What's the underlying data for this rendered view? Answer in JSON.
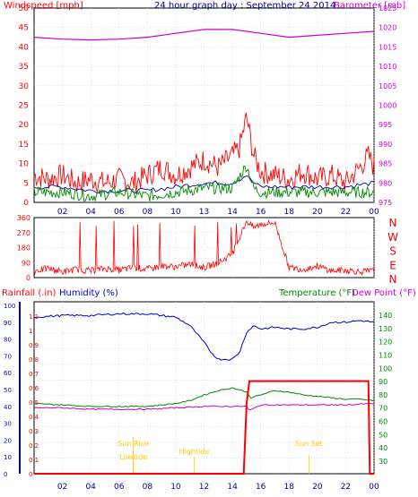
{
  "title": "24 hour graph day : September 24 2014",
  "colors": {
    "wind_avg": "#000099",
    "wind_gust": "#ff0000",
    "wind_green": "#008800",
    "barometer": "#cc00cc",
    "direction": "#ff0000",
    "rain": "#ff0000",
    "humidity": "#0000cc",
    "temperature": "#008800",
    "dewpoint": "#cc00cc",
    "sun_markers": "#ffcc00",
    "grid": "#c8c8c8"
  },
  "chart_data": [
    {
      "type": "line",
      "labels": {
        "left": "Windspeed [mph]",
        "right": "Barometer [mb]"
      },
      "x_ticks": [
        "02",
        "04",
        "06",
        "08",
        "10",
        "13",
        "14",
        "16",
        "18",
        "20",
        "22",
        "00"
      ],
      "y_left_ticks": [
        "0",
        "5",
        "10",
        "15",
        "20",
        "25",
        "30",
        "35",
        "40",
        "45",
        "50"
      ],
      "y_right_ticks": [
        "975",
        "980",
        "985",
        "990",
        "995",
        "1000",
        "1005",
        "1010",
        "1015",
        "1020",
        "1025"
      ],
      "ylim_left": [
        0,
        50
      ],
      "ylim_right": [
        975,
        1025
      ],
      "series": [
        {
          "name": "Windspeed",
          "axis": "left",
          "x": [
            0,
            1,
            2,
            3,
            4,
            5,
            6,
            7,
            8,
            9,
            10,
            11,
            12,
            13,
            14,
            14.5,
            15,
            15.5,
            16,
            17,
            18,
            19,
            20,
            21,
            22,
            23,
            23.6,
            24
          ],
          "values": [
            7,
            6,
            7,
            5,
            6,
            5,
            6,
            5,
            7,
            9,
            7,
            9,
            11,
            9,
            12,
            14,
            22,
            12,
            8,
            7,
            6,
            8,
            6,
            7,
            5,
            9,
            12,
            9
          ]
        },
        {
          "name": "Average",
          "axis": "left",
          "x": [
            0,
            2,
            4,
            6,
            8,
            10,
            12,
            14,
            15,
            15.5,
            16,
            18,
            20,
            22,
            24
          ],
          "values": [
            4,
            4,
            3,
            3,
            3,
            4,
            5,
            5,
            7,
            5,
            4,
            4,
            4,
            4,
            5
          ]
        },
        {
          "name": "Green",
          "axis": "left",
          "x": [
            0,
            2,
            4,
            6,
            8,
            10,
            12,
            14,
            15,
            15.5,
            16,
            18,
            20,
            22,
            24
          ],
          "values": [
            2,
            2,
            1,
            2,
            1,
            2,
            3,
            3,
            9,
            3,
            2,
            2,
            2,
            2,
            2
          ]
        },
        {
          "name": "Barometer",
          "axis": "right",
          "x": [
            0,
            2,
            4,
            6,
            8,
            10,
            12,
            14,
            16,
            18,
            20,
            22,
            24
          ],
          "values": [
            1017.5,
            1017,
            1016.8,
            1017,
            1017.5,
            1018.5,
            1019.5,
            1019.5,
            1018.5,
            1017.5,
            1018,
            1018.5,
            1019
          ]
        }
      ]
    },
    {
      "type": "line",
      "labels": {
        "right": [
          "N",
          "W",
          "S",
          "E",
          "N"
        ]
      },
      "y_left_ticks": [
        "0",
        "90",
        "180",
        "270",
        "360"
      ],
      "ylim_left": [
        0,
        360
      ],
      "series": [
        {
          "name": "Direction",
          "x": [
            0,
            1,
            2,
            3,
            4,
            5,
            6,
            7,
            8,
            9,
            10,
            11,
            12,
            13,
            14,
            15,
            15.5,
            16,
            17,
            18,
            19,
            20,
            21,
            22,
            23,
            24
          ],
          "values": [
            40,
            55,
            35,
            50,
            40,
            55,
            45,
            60,
            50,
            70,
            65,
            80,
            60,
            90,
            140,
            340,
            300,
            320,
            330,
            60,
            50,
            70,
            40,
            45,
            35,
            40
          ]
        }
      ]
    },
    {
      "type": "line",
      "labels": {
        "rainfall": "Rainfall (.in)",
        "humidity": "Humidity (%)",
        "temperature": "Temperature (°F)",
        "dewpoint": "Dew Point (°F)"
      },
      "x_ticks": [
        "02",
        "04",
        "06",
        "08",
        "10",
        "12",
        "14",
        "16",
        "18",
        "20",
        "22",
        "00"
      ],
      "y_humidity_ticks": [
        "0",
        "10",
        "20",
        "30",
        "40",
        "50",
        "60",
        "70",
        "80",
        "90",
        "100"
      ],
      "y_rain_ticks": [
        "0",
        "0.1",
        "0.2",
        "0.3",
        "0.4",
        "0.5",
        "0.6",
        "0.7",
        "0.8",
        "0.9",
        "1",
        "1.1"
      ],
      "y_temp_ticks": [
        "30",
        "40",
        "50",
        "60",
        "70",
        "80",
        "90",
        "100",
        "110",
        "120",
        "130",
        "140"
      ],
      "ylim_humidity": [
        0,
        100
      ],
      "ylim_rain": [
        0,
        1.2
      ],
      "ylim_temp": [
        25,
        145
      ],
      "series": [
        {
          "name": "Humidity",
          "axis": "humidity",
          "x": [
            0,
            2,
            4,
            6,
            8,
            10,
            11,
            12,
            12.5,
            13,
            14,
            14.5,
            15,
            15.5,
            16,
            17,
            18,
            19,
            20,
            21,
            22,
            23,
            24
          ],
          "values": [
            93,
            94,
            94,
            95,
            95,
            93,
            88,
            78,
            72,
            68,
            68,
            72,
            84,
            88,
            86,
            87,
            86,
            86,
            87,
            90,
            90,
            91,
            90
          ]
        },
        {
          "name": "Temperature",
          "axis": "temp",
          "x": [
            0,
            2,
            4,
            6,
            8,
            10,
            11,
            12,
            13,
            14,
            15,
            15.3,
            16,
            17,
            18,
            19,
            20,
            21,
            22,
            23,
            24
          ],
          "values": [
            74,
            73,
            72,
            72,
            72,
            74,
            76,
            80,
            83,
            85,
            82,
            78,
            80,
            83,
            82,
            80,
            79,
            78,
            77,
            77,
            76
          ]
        },
        {
          "name": "Dew Point",
          "axis": "temp",
          "x": [
            0,
            2,
            4,
            6,
            8,
            10,
            12,
            14,
            15,
            15.2,
            16,
            18,
            20,
            22,
            24
          ],
          "values": [
            71,
            71,
            70,
            70,
            70,
            71,
            72,
            72,
            72,
            69,
            73,
            73,
            73,
            73,
            74
          ]
        },
        {
          "name": "Rainfall",
          "axis": "rain",
          "x": [
            0,
            14,
            14.8,
            15,
            15.2,
            23.6,
            23.7,
            24
          ],
          "values": [
            0,
            0,
            0,
            0.5,
            0.66,
            0.66,
            0,
            0
          ]
        }
      ],
      "annotations": [
        {
          "text": "Sun Rise",
          "x": 7.0
        },
        {
          "text": "Lowtide",
          "x": 7.0
        },
        {
          "text": "Hightide",
          "x": 11.3
        },
        {
          "text": "Sun Set",
          "x": 19.4
        }
      ]
    }
  ]
}
